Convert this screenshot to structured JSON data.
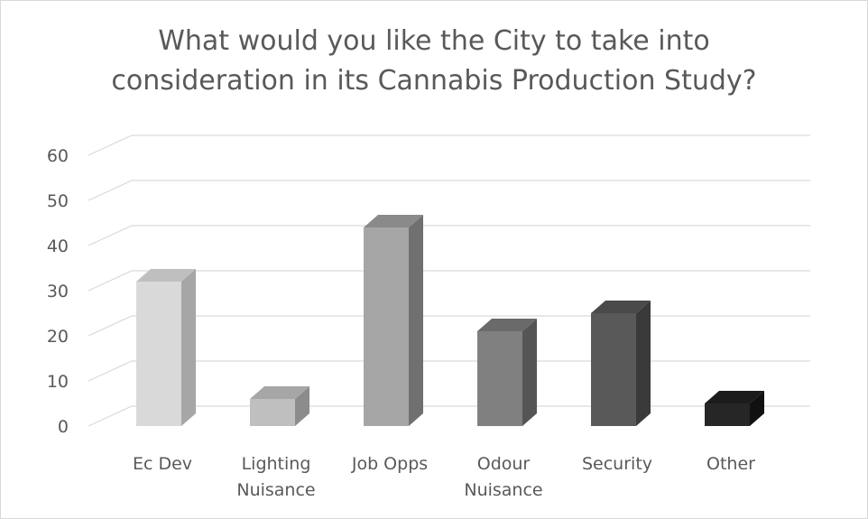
{
  "chart_data": {
    "type": "bar",
    "title_lines": [
      "What would you like the City to take into",
      "consideration in its Cannabis Production Study?"
    ],
    "categories": [
      [
        "Ec Dev"
      ],
      [
        "Lighting",
        "Nuisance"
      ],
      [
        "Job Opps"
      ],
      [
        "Odour",
        "Nuisance"
      ],
      [
        "Security"
      ],
      [
        "Other"
      ]
    ],
    "values": [
      32,
      6,
      44,
      21,
      25,
      5
    ],
    "bar_colors": [
      {
        "front": "#d9d9d9",
        "side": "#a6a6a6",
        "top": "#bfbfbf"
      },
      {
        "front": "#bfbfbf",
        "side": "#8c8c8c",
        "top": "#a6a6a6"
      },
      {
        "front": "#a6a6a6",
        "side": "#707070",
        "top": "#8a8a8a"
      },
      {
        "front": "#808080",
        "side": "#555555",
        "top": "#6a6a6a"
      },
      {
        "front": "#595959",
        "side": "#3a3a3a",
        "top": "#4a4a4a"
      },
      {
        "front": "#262626",
        "side": "#111111",
        "top": "#1c1c1c"
      }
    ],
    "y_ticks": [
      "0",
      "10",
      "20",
      "30",
      "40",
      "50",
      "60"
    ],
    "ylim": [
      0,
      60
    ],
    "grid": true,
    "legend": "none",
    "xlabel": "",
    "ylabel": ""
  }
}
